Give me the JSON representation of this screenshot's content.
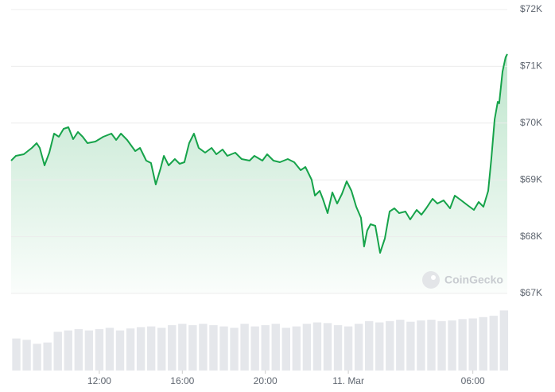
{
  "chart_data": [
    {
      "type": "line",
      "color": "#16a34a",
      "area": true,
      "grid": true,
      "watermark": "CoinGecko",
      "x": [
        7.75,
        7.98,
        8.36,
        8.75,
        8.98,
        9.13,
        9.36,
        9.59,
        9.82,
        10.05,
        10.28,
        10.51,
        10.74,
        10.97,
        11.2,
        11.43,
        11.81,
        12.19,
        12.58,
        12.81,
        13.04,
        13.34,
        13.73,
        13.96,
        14.26,
        14.49,
        14.72,
        14.95,
        15.11,
        15.34,
        15.64,
        15.87,
        16.1,
        16.33,
        16.56,
        16.79,
        17.1,
        17.41,
        17.64,
        17.94,
        18.17,
        18.55,
        18.86,
        19.24,
        19.47,
        19.86,
        20.09,
        20.39,
        20.7,
        21.08,
        21.39,
        21.7,
        21.93,
        22.23,
        22.39,
        22.62,
        22.77,
        23,
        23.23,
        23.46,
        23.69,
        23.92,
        24.15,
        24.38,
        24.61,
        24.76,
        24.91,
        25.07,
        25.3,
        25.53,
        25.76,
        25.99,
        26.22,
        26.45,
        26.75,
        26.98,
        27.29,
        27.52,
        27.75,
        28.06,
        28.29,
        28.59,
        28.9,
        29.13,
        29.44,
        29.74,
        30.05,
        30.28,
        30.51,
        30.74,
        30.89,
        31.05,
        31.2,
        31.27,
        31.43,
        31.58,
        31.66
      ],
      "values": [
        69339,
        69423,
        69451,
        69563,
        69647,
        69563,
        69255,
        69479,
        69815,
        69759,
        69899,
        69927,
        69717,
        69843,
        69759,
        69647,
        69675,
        69759,
        69815,
        69703,
        69815,
        69703,
        69507,
        69563,
        69339,
        69297,
        68919,
        69199,
        69423,
        69255,
        69367,
        69283,
        69311,
        69647,
        69815,
        69563,
        69479,
        69563,
        69451,
        69535,
        69423,
        69479,
        69367,
        69339,
        69423,
        69339,
        69451,
        69339,
        69311,
        69367,
        69311,
        69171,
        69227,
        69003,
        68723,
        68807,
        68667,
        68415,
        68779,
        68583,
        68751,
        68975,
        68807,
        68527,
        68331,
        67826,
        68106,
        68218,
        68190,
        67714,
        67966,
        68443,
        68499,
        68415,
        68443,
        68303,
        68471,
        68387,
        68499,
        68667,
        68583,
        68639,
        68499,
        68723,
        68639,
        68555,
        68471,
        68611,
        68527,
        68807,
        69367,
        70067,
        70375,
        70347,
        70908,
        71160,
        71216
      ],
      "xlim": [
        7.75,
        31.66
      ],
      "xticks": [
        {
          "value": 12,
          "label": "12:00"
        },
        {
          "value": 16,
          "label": "16:00"
        },
        {
          "value": 20,
          "label": "20:00"
        },
        {
          "value": 24,
          "label": "11. Mar"
        },
        {
          "value": 30,
          "label": "06:00"
        }
      ],
      "ylim": [
        67000,
        72000
      ],
      "yticks": [
        {
          "value": 67000,
          "label": "$67K"
        },
        {
          "value": 68000,
          "label": "$68K"
        },
        {
          "value": 69000,
          "label": "$69K"
        },
        {
          "value": 70000,
          "label": "$70K"
        },
        {
          "value": 71000,
          "label": "$71K"
        },
        {
          "value": 72000,
          "label": "$72K"
        }
      ]
    },
    {
      "type": "bar",
      "color": "#e5e7eb",
      "x": [
        8,
        8.5,
        9,
        9.5,
        10,
        10.5,
        11,
        11.5,
        12,
        12.5,
        13,
        13.5,
        14,
        14.5,
        15,
        15.5,
        16,
        16.5,
        17,
        17.5,
        18,
        18.5,
        19,
        19.5,
        20,
        20.5,
        21,
        21.5,
        22,
        22.5,
        23,
        23.5,
        24,
        24.5,
        25,
        25.5,
        26,
        26.5,
        27,
        27.5,
        28,
        28.5,
        29,
        29.5,
        30,
        30.5,
        31,
        31.5
      ],
      "values": [
        48,
        46,
        40,
        42,
        58,
        60,
        62,
        60,
        62,
        64,
        60,
        63,
        65,
        66,
        64,
        68,
        70,
        68,
        70,
        68,
        66,
        64,
        70,
        66,
        68,
        70,
        64,
        66,
        70,
        72,
        71,
        68,
        66,
        70,
        74,
        72,
        74,
        76,
        73,
        75,
        76,
        74,
        75,
        77,
        78,
        80,
        82,
        90
      ],
      "xlim": [
        7.75,
        31.66
      ],
      "ylim": [
        0,
        100
      ]
    }
  ]
}
